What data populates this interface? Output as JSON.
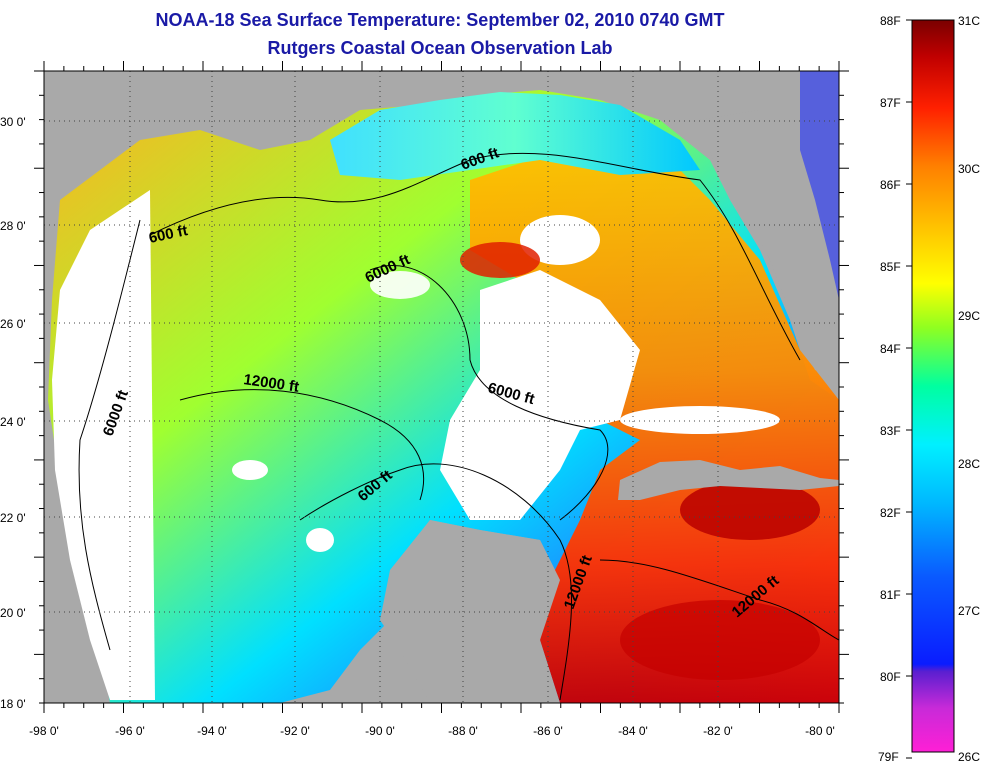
{
  "title": {
    "line1": "NOAA-18 Sea Surface Temperature:  September 02, 2010 0740 GMT",
    "line2": "Rutgers Coastal Ocean Observation Lab"
  },
  "axes": {
    "lat_labels": [
      "30 0'",
      "28 0'",
      "26 0'",
      "24 0'",
      "22 0'",
      "20 0'",
      "18 0'"
    ],
    "lon_labels": [
      "-98 0'",
      "-96 0'",
      "-94 0'",
      "-92 0'",
      "-90 0'",
      "-88 0'",
      "-86 0'",
      "-84 0'",
      "-82 0'",
      "-80 0'"
    ]
  },
  "contour_labels": [
    "600 ft",
    "600 ft",
    "6000 ft",
    "12000 ft",
    "6000 ft",
    "6000 ft",
    "600 ft",
    "12000 ft",
    "12000 ft"
  ],
  "colorbar": {
    "fahrenheit": [
      "88F",
      "87F",
      "86F",
      "85F",
      "84F",
      "83F",
      "82F",
      "81F",
      "80F",
      "79F"
    ],
    "celsius": [
      "31C",
      "30C",
      "29C",
      "28C",
      "27C",
      "26C"
    ]
  },
  "colors": {
    "title": "#1a1aa6",
    "land": "#a9a9a9",
    "cloud": "#ffffff"
  }
}
